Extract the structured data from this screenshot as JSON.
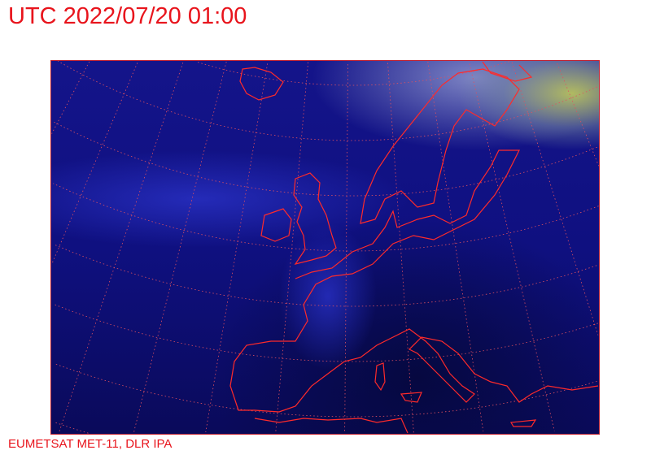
{
  "header": {
    "title": "UTC 2022/07/20 01:00"
  },
  "map": {
    "type": "satellite-image",
    "region": "Europe",
    "overlays": [
      "coastlines",
      "graticule"
    ],
    "colors": {
      "coastline": "#ff2a2a",
      "graticule": "#e05060",
      "text": "#e8141c"
    }
  },
  "footer": {
    "credit": "EUMETSAT MET-11, DLR IPA"
  }
}
